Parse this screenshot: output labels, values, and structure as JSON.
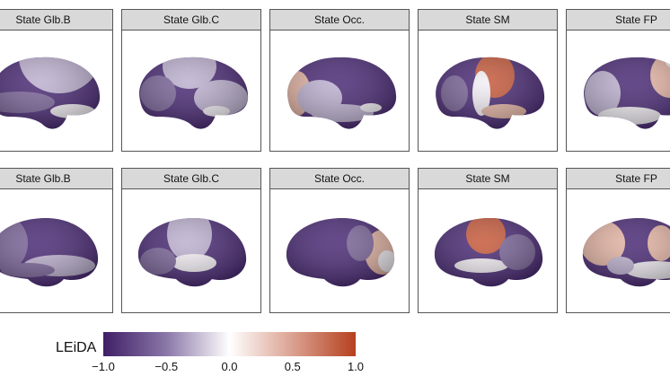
{
  "rows": [
    {
      "view": "lateral",
      "panels": [
        "State Glb.B",
        "State Glb.C",
        "State Occ.",
        "State SM",
        "State FP"
      ]
    },
    {
      "view": "medial",
      "panels": [
        "State Glb.B",
        "State Glb.C",
        "State Occ.",
        "State SM",
        "State FP"
      ]
    }
  ],
  "colorbar": {
    "title": "LEiDA",
    "ticks": [
      "−1.0",
      "−0.5",
      "0.0",
      "0.5",
      "1.0"
    ],
    "range": [
      -1,
      1
    ],
    "colors": {
      "low": "#3f1f66",
      "mid": "#ffffff",
      "high": "#b5401f"
    }
  }
}
